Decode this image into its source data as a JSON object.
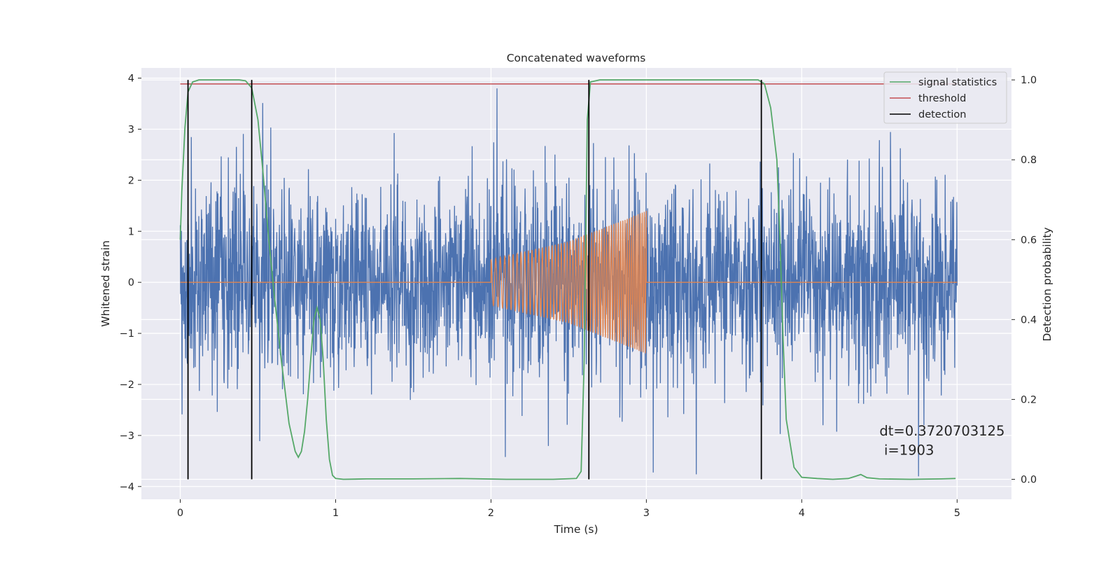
{
  "chart_data": {
    "type": "line",
    "title": "Concatenated waveforms",
    "xlabel": "Time (s)",
    "ylabel": "Whitened strain",
    "ylabel_right": "Detection probability",
    "xlim": [
      -0.25,
      5.35
    ],
    "ylim": [
      -4.25,
      4.2
    ],
    "ylim_right": [
      -0.05,
      1.03
    ],
    "x_ticks": [
      0,
      1,
      2,
      3,
      4,
      5
    ],
    "y_ticks": [
      -4,
      -3,
      -2,
      -1,
      0,
      1,
      2,
      3,
      4
    ],
    "y_ticks_right": [
      0.0,
      0.2,
      0.4,
      0.6,
      0.8,
      1.0
    ],
    "x_tick_labels": [
      "0",
      "1",
      "2",
      "3",
      "4",
      "5"
    ],
    "y_tick_labels": [
      "−4",
      "−3",
      "−2",
      "−1",
      "0",
      "1",
      "2",
      "3",
      "4"
    ],
    "y_tick_labels_right": [
      "0.0",
      "0.2",
      "0.4",
      "0.6",
      "0.8",
      "1.0"
    ],
    "grid": true,
    "legend_position": "top-right",
    "series": [
      {
        "name": "",
        "axis": "left",
        "color": "#4c72b0",
        "kind": "whitened strain noise, amplitude approx ±2.5 with spikes to about ±3.8, over 0–5 s",
        "x_range": [
          0,
          5
        ],
        "envelope": [
          -3.8,
          3.8
        ]
      },
      {
        "name": "",
        "axis": "left",
        "color": "#dd8452",
        "kind": "injected chirp, zero outside 2–3 s, amplitude growing from about 0.45 at 2 s to about 1.4 at 3 s",
        "x": [
          0,
          2,
          2.5,
          3,
          3.01,
          5
        ],
        "amplitude": [
          0,
          0.45,
          0.8,
          1.4,
          0,
          0
        ]
      },
      {
        "name": "signal statistics",
        "axis": "right",
        "color": "#55a868",
        "x": [
          0.0,
          0.01,
          0.03,
          0.05,
          0.08,
          0.12,
          0.2,
          0.3,
          0.38,
          0.42,
          0.46,
          0.5,
          0.53,
          0.57,
          0.6,
          0.65,
          0.7,
          0.74,
          0.76,
          0.78,
          0.8,
          0.82,
          0.84,
          0.86,
          0.88,
          0.9,
          0.92,
          0.94,
          0.96,
          0.98,
          1.0,
          1.05,
          1.2,
          1.5,
          1.8,
          2.1,
          2.4,
          2.55,
          2.58,
          2.6,
          2.62,
          2.64,
          2.7,
          3.0,
          3.4,
          3.72,
          3.76,
          3.8,
          3.84,
          3.86,
          3.88,
          3.9,
          3.95,
          4.0,
          4.1,
          4.2,
          4.3,
          4.35,
          4.38,
          4.42,
          4.5,
          4.7,
          4.9,
          4.99
        ],
        "values": [
          0.6,
          0.72,
          0.88,
          0.97,
          0.995,
          1.0,
          1.0,
          1.0,
          1.0,
          0.998,
          0.98,
          0.9,
          0.78,
          0.6,
          0.48,
          0.3,
          0.14,
          0.07,
          0.055,
          0.07,
          0.12,
          0.2,
          0.3,
          0.4,
          0.43,
          0.4,
          0.3,
          0.15,
          0.05,
          0.01,
          0.002,
          0.0,
          0.001,
          0.001,
          0.002,
          0.0,
          0.0,
          0.002,
          0.02,
          0.3,
          0.9,
          0.995,
          1.0,
          1.0,
          1.0,
          1.0,
          0.99,
          0.93,
          0.8,
          0.6,
          0.35,
          0.15,
          0.03,
          0.005,
          0.002,
          0.0,
          0.002,
          0.008,
          0.012,
          0.004,
          0.001,
          0.0,
          0.001,
          0.002
        ]
      },
      {
        "name": "threshold",
        "axis": "right",
        "color": "#c44e52",
        "x": [
          0,
          5
        ],
        "values": [
          0.99,
          0.99
        ]
      },
      {
        "name": "detection",
        "axis": "right",
        "color": "#000000",
        "kind": "vertical lines from 0 to 1",
        "x": [
          0.05,
          0.46,
          2.63,
          3.74
        ]
      }
    ],
    "annotations": [
      {
        "text": "dt=0.3720703125",
        "x": 4.5,
        "y": -3.0,
        "axis": "left"
      },
      {
        "text": "i=1903",
        "x": 4.53,
        "y": -3.38,
        "axis": "left"
      }
    ]
  }
}
